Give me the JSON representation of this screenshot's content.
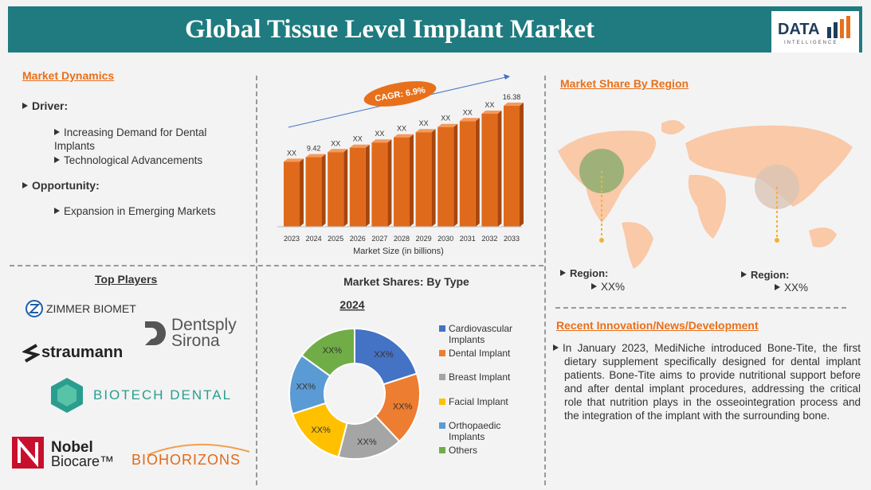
{
  "header": {
    "title": "Global Tissue Level Implant Market",
    "logo": "DATA",
    "logo_tagline": "INTELLIGENCE"
  },
  "dynamics": {
    "heading": "Market Dynamics",
    "driver_label": "Driver:",
    "drivers": [
      "Increasing Demand for Dental Implants",
      "Technological Advancements"
    ],
    "opportunity_label": "Opportunity:",
    "opportunities": [
      "Expansion in Emerging Markets"
    ]
  },
  "players": {
    "heading": "Top Players",
    "names": [
      "ZIMMER BIOMET",
      "Dentsply",
      "Sirona",
      "straumann",
      "BIOTECH DENTAL",
      "Nobel",
      "Biocare™",
      "BIOHORIZONS"
    ]
  },
  "region": {
    "heading": "Market Share By Region",
    "items": [
      {
        "label": "Region:",
        "value": "XX%"
      },
      {
        "label": "Region:",
        "value": "XX%"
      }
    ]
  },
  "news": {
    "heading": "Recent Innovation/News/Development",
    "text": "In January 2023, MediNiche introduced Bone-Tite, the first dietary supplement specifically designed for dental implant patients. Bone-Tite aims to provide nutritional support before and after dental implant procedures, addressing the critical role that nutrition plays in the osseointegration process and the integration of the implant with the surrounding bone."
  },
  "chart_data": [
    {
      "type": "bar",
      "categories": [
        "2023",
        "2024",
        "2025",
        "2026",
        "2027",
        "2028",
        "2029",
        "2030",
        "2031",
        "2032",
        "2033"
      ],
      "values": [
        8.8,
        9.42,
        10.1,
        10.7,
        11.4,
        12.1,
        12.8,
        13.5,
        14.3,
        15.3,
        16.38
      ],
      "value_labels": [
        "XX",
        "9.42",
        "XX",
        "XX",
        "XX",
        "XX",
        "XX",
        "XX",
        "XX",
        "XX",
        "16.38"
      ],
      "color": "#e06a1b",
      "xlabel": "Market Size (in billions)",
      "annotation": "CAGR: 6.9%"
    },
    {
      "type": "pie",
      "title": "Market Shares: By Type",
      "subtitle": "2024",
      "categories": [
        "Cardiovascular Implants",
        "Dental Implant",
        "Breast Implant",
        "Facial Implant",
        "Orthopaedic Implants",
        "Others"
      ],
      "values": [
        20,
        18,
        16,
        16,
        15,
        15
      ],
      "value_labels": [
        "XX%",
        "XX%",
        "XX%",
        "XX%",
        "XX%",
        "XX%"
      ],
      "colors": [
        "#4472c4",
        "#ed7d31",
        "#a5a5a5",
        "#ffc000",
        "#5b9bd5",
        "#70ad47"
      ]
    }
  ]
}
